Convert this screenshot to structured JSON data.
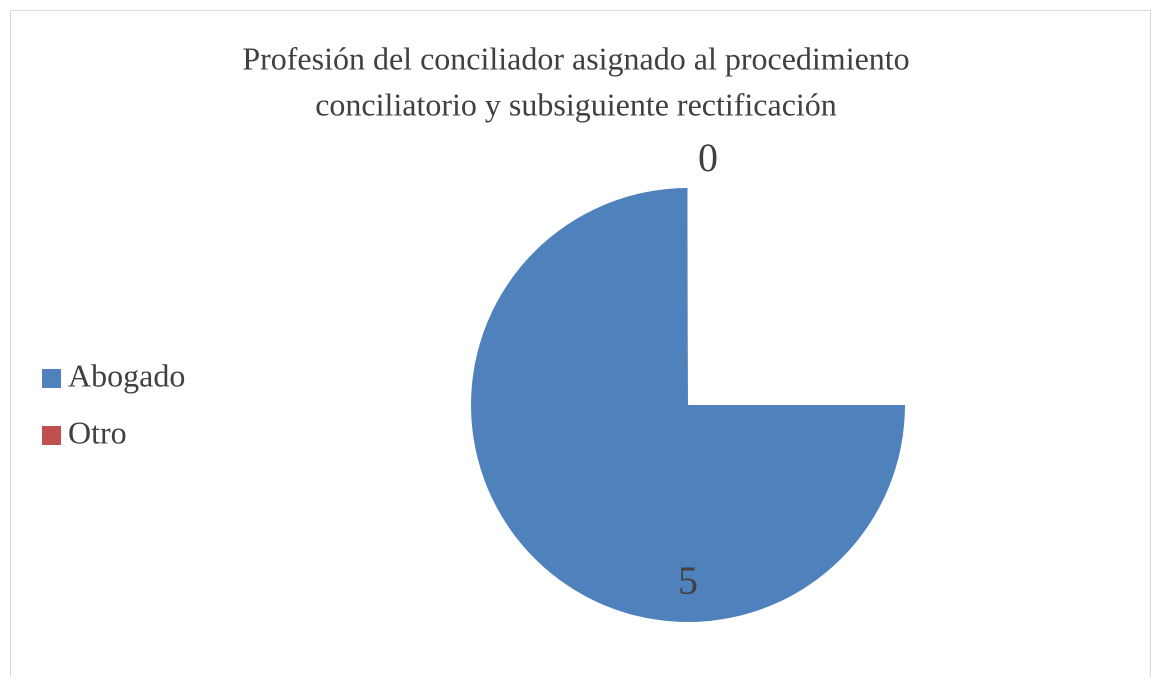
{
  "chart_data": {
    "type": "pie",
    "title": [
      "Profesión del conciliador asignado al procedimiento",
      "conciliatorio y subsiguiente rectificación"
    ],
    "categories": [
      "Abogado",
      "Otro",
      null
    ],
    "values": [
      5,
      0,
      1.67
    ],
    "colors": [
      "#4f81bd",
      "#c0504d",
      "#ffffff"
    ],
    "legend": "left"
  }
}
